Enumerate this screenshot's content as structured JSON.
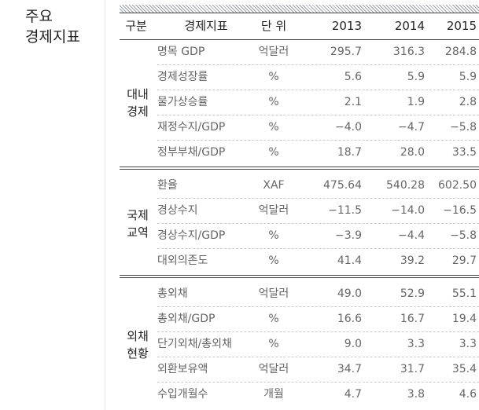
{
  "side_title": {
    "line1": "주요",
    "line2": "경제지표"
  },
  "table": {
    "headers": {
      "category": "구분",
      "indicator": "경제지표",
      "unit": "단 위",
      "years": [
        "2013",
        "2014",
        "2015"
      ]
    },
    "sections": [
      {
        "label_lines": [
          "대내",
          "경제"
        ],
        "rows": [
          {
            "indicator": "명목 GDP",
            "unit": "억달러",
            "values": [
              "295.7",
              "316.3",
              "284.8"
            ]
          },
          {
            "indicator": "경제성장률",
            "unit": "%",
            "values": [
              "5.6",
              "5.9",
              "5.9"
            ]
          },
          {
            "indicator": "물가상승률",
            "unit": "%",
            "values": [
              "2.1",
              "1.9",
              "2.8"
            ]
          },
          {
            "indicator": "재정수지/GDP",
            "unit": "%",
            "values": [
              "−4.0",
              "−4.7",
              "−5.8"
            ]
          },
          {
            "indicator": "정부부채/GDP",
            "unit": "%",
            "values": [
              "18.7",
              "28.0",
              "33.5"
            ]
          }
        ]
      },
      {
        "label_lines": [
          "국제",
          "교역"
        ],
        "rows": [
          {
            "indicator": "환율",
            "unit": "XAF",
            "values": [
              "475.64",
              "540.28",
              "602.50"
            ]
          },
          {
            "indicator": "경상수지",
            "unit": "억달러",
            "values": [
              "−11.5",
              "−14.0",
              "−16.5"
            ]
          },
          {
            "indicator": "경상수지/GDP",
            "unit": "%",
            "values": [
              "−3.9",
              "−4.4",
              "−5.8"
            ]
          },
          {
            "indicator": "대외의존도",
            "unit": "%",
            "values": [
              "41.4",
              "39.2",
              "29.7"
            ]
          }
        ]
      },
      {
        "label_lines": [
          "외채",
          "현황"
        ],
        "rows": [
          {
            "indicator": "총외채",
            "unit": "억달러",
            "values": [
              "49.0",
              "52.9",
              "55.1"
            ]
          },
          {
            "indicator": "총외채/GDP",
            "unit": "%",
            "values": [
              "16.6",
              "16.7",
              "19.4"
            ]
          },
          {
            "indicator": "단기외채/총외채",
            "unit": "%",
            "values": [
              "9.0",
              "3.3",
              "3.3"
            ]
          },
          {
            "indicator": "외환보유액",
            "unit": "억달러",
            "values": [
              "34.7",
              "31.7",
              "35.4"
            ]
          },
          {
            "indicator": "수입개월수",
            "unit": "개월",
            "values": [
              "4.7",
              "3.8",
              "4.6"
            ]
          }
        ]
      }
    ]
  }
}
